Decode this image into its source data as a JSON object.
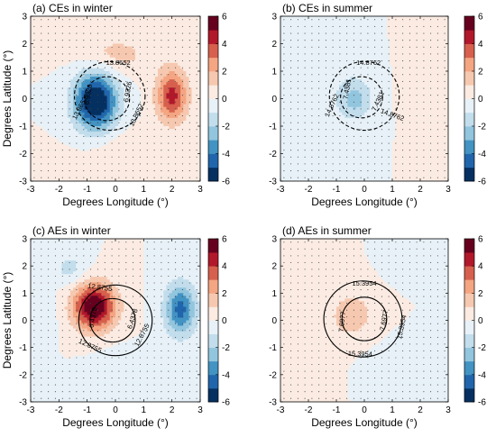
{
  "chart_data": [
    {
      "type": "heatmap",
      "title": "(a) CEs in winter",
      "xlabel": "Degrees Longitude (°)",
      "ylabel": "Degrees Latitude (°)",
      "xlim": [
        -3,
        3
      ],
      "ylim": [
        -3,
        3
      ],
      "xticks": [
        "-3",
        "-2",
        "-1",
        "0",
        "1",
        "2",
        "3"
      ],
      "yticks": [
        "-3",
        "-2",
        "-1",
        "0",
        "1",
        "2",
        "3"
      ],
      "colorbar": {
        "min": -6,
        "max": 6,
        "ticks": [
          "6",
          "4",
          "2",
          "0",
          "-2",
          "-4",
          "-6"
        ]
      },
      "field": [
        {
          "x": -0.7,
          "y": -0.1,
          "amp": -6.6,
          "sx": 0.75,
          "sy": 1.05
        },
        {
          "x": 2.0,
          "y": 0.1,
          "amp": 4.4,
          "sx": 0.55,
          "sy": 0.95
        },
        {
          "x": 0.0,
          "y": 1.6,
          "amp": 1.4,
          "sx": 1.3,
          "sy": 0.7
        },
        {
          "x": 0.2,
          "y": -1.8,
          "amp": 0.7,
          "sx": 1.4,
          "sy": 0.7
        }
      ],
      "contours": {
        "style": "dashed",
        "rings": [
          {
            "cx": -0.2,
            "cy": 0.1,
            "r": 1.25
          },
          {
            "cx": -0.3,
            "cy": 0.0,
            "r": 0.8
          }
        ],
        "labels": [
          {
            "text": "13.8652",
            "x": 0.1,
            "y": 1.3,
            "angle": 0
          },
          {
            "text": "13.8652",
            "x": -1.25,
            "y": -0.35,
            "angle": -62
          },
          {
            "text": "13.8652",
            "x": 0.75,
            "y": -0.6,
            "angle": -65
          },
          {
            "text": "6.9326",
            "x": -0.95,
            "y": 0.15,
            "angle": -80
          },
          {
            "text": "6.9326",
            "x": 0.45,
            "y": 0.25,
            "angle": -80
          }
        ]
      }
    },
    {
      "type": "heatmap",
      "title": "(b) CEs in summer",
      "xlabel": "Degrees Longitude (°)",
      "ylabel": "",
      "xlim": [
        -3,
        3
      ],
      "ylim": [
        -3,
        3
      ],
      "xticks": [
        "-3",
        "-2",
        "-1",
        "0",
        "1",
        "2",
        "3"
      ],
      "yticks": [
        "-3",
        "-2",
        "-1",
        "0",
        "1",
        "2",
        "3"
      ],
      "colorbar": {
        "min": -6,
        "max": 6,
        "ticks": [
          "6",
          "4",
          "2",
          "0",
          "-2",
          "-4",
          "-6"
        ]
      },
      "field": [
        {
          "x": -0.35,
          "y": -0.05,
          "amp": -1.6,
          "sx": 0.45,
          "sy": 0.5
        },
        {
          "x": -0.4,
          "y": 0.2,
          "amp": -1.0,
          "sx": 1.3,
          "sy": 1.8
        },
        {
          "x": -1.3,
          "y": 2.4,
          "amp": -0.6,
          "sx": 0.9,
          "sy": 0.7
        },
        {
          "x": 2.0,
          "y": 0.5,
          "amp": 0.6,
          "sx": 1.2,
          "sy": 2.0
        }
      ],
      "contours": {
        "style": "dashed",
        "rings": [
          {
            "cx": 0.0,
            "cy": 0.1,
            "r": 1.25
          },
          {
            "cx": -0.1,
            "cy": 0.05,
            "r": 0.75
          }
        ],
        "labels": [
          {
            "text": "14.8762",
            "x": 0.15,
            "y": 1.3,
            "angle": 0
          },
          {
            "text": "14.8762",
            "x": -1.15,
            "y": -0.25,
            "angle": -65
          },
          {
            "text": "14.8762",
            "x": 1.0,
            "y": -0.6,
            "angle": 20
          },
          {
            "text": "7.4381",
            "x": -0.6,
            "y": 0.35,
            "angle": -80
          },
          {
            "text": "7.4381",
            "x": 0.5,
            "y": -0.1,
            "angle": -65
          }
        ]
      }
    },
    {
      "type": "heatmap",
      "title": "(c) AEs in winter",
      "xlabel": "Degrees Longitude (°)",
      "ylabel": "Degrees Latitude (°)",
      "xlim": [
        -3,
        3
      ],
      "ylim": [
        -3,
        3
      ],
      "xticks": [
        "-3",
        "-2",
        "-1",
        "0",
        "1",
        "2",
        "3"
      ],
      "yticks": [
        "-3",
        "-2",
        "-1",
        "0",
        "1",
        "2",
        "3"
      ],
      "colorbar": {
        "min": -6,
        "max": 6,
        "ticks": [
          "6",
          "4",
          "2",
          "0",
          "-2",
          "-4",
          "-6"
        ]
      },
      "field": [
        {
          "x": -0.75,
          "y": 0.5,
          "amp": 6.2,
          "sx": 0.75,
          "sy": 0.85
        },
        {
          "x": 2.3,
          "y": 0.4,
          "amp": -4.4,
          "sx": 0.55,
          "sy": 0.95
        },
        {
          "x": -1.6,
          "y": 1.9,
          "amp": -1.4,
          "sx": 0.6,
          "sy": 0.6
        },
        {
          "x": 0.4,
          "y": -1.7,
          "amp": -1.0,
          "sx": 1.0,
          "sy": 0.6
        },
        {
          "x": -2.6,
          "y": 0.2,
          "amp": -0.8,
          "sx": 0.5,
          "sy": 0.8
        }
      ],
      "contours": {
        "style": "solid",
        "rings": [
          {
            "cx": 0.0,
            "cy": 0.0,
            "r": 1.3
          },
          {
            "cx": -0.1,
            "cy": 0.0,
            "r": 0.8
          }
        ],
        "labels": [
          {
            "text": "12.8755",
            "x": -0.55,
            "y": 1.2,
            "angle": 8
          },
          {
            "text": "12.8755",
            "x": -0.9,
            "y": -0.95,
            "angle": 25
          },
          {
            "text": "12.8755",
            "x": 0.95,
            "y": -0.55,
            "angle": -62
          },
          {
            "text": "6.4378",
            "x": -0.78,
            "y": 0.1,
            "angle": -80
          },
          {
            "text": "6.4378",
            "x": 0.62,
            "y": 0.05,
            "angle": -72
          }
        ]
      }
    },
    {
      "type": "heatmap",
      "title": "(d) AEs in summer",
      "xlabel": "Degrees Longitude (°)",
      "ylabel": "",
      "xlim": [
        -3,
        3
      ],
      "ylim": [
        -3,
        3
      ],
      "xticks": [
        "-3",
        "-2",
        "-1",
        "0",
        "1",
        "2",
        "3"
      ],
      "yticks": [
        "-3",
        "-2",
        "-1",
        "0",
        "1",
        "2",
        "3"
      ],
      "colorbar": {
        "min": -6,
        "max": 6,
        "ticks": [
          "6",
          "4",
          "2",
          "0",
          "-2",
          "-4",
          "-6"
        ]
      },
      "field": [
        {
          "x": -0.45,
          "y": 0.2,
          "amp": 1.5,
          "sx": 0.9,
          "sy": 1.0
        },
        {
          "x": 2.3,
          "y": 0.15,
          "amp": -1.0,
          "sx": 0.18,
          "sy": 0.25
        },
        {
          "x": 1.8,
          "y": 2.0,
          "amp": -0.55,
          "sx": 0.9,
          "sy": 0.6
        },
        {
          "x": 1.2,
          "y": -1.6,
          "amp": -0.5,
          "sx": 1.3,
          "sy": 0.9
        },
        {
          "x": -2.0,
          "y": -1.3,
          "amp": 0.5,
          "sx": 1.0,
          "sy": 1.2
        }
      ],
      "contours": {
        "style": "solid",
        "rings": [
          {
            "cx": -0.05,
            "cy": 0.05,
            "r": 1.4
          },
          {
            "cx": 0.0,
            "cy": 0.05,
            "r": 0.8
          }
        ],
        "labels": [
          {
            "text": "15.3954",
            "x": 0.0,
            "y": 1.35,
            "angle": 0
          },
          {
            "text": "15.3954",
            "x": -0.15,
            "y": -1.25,
            "angle": 2
          },
          {
            "text": "15.3954",
            "x": 1.35,
            "y": -0.25,
            "angle": -78
          },
          {
            "text": "7.6977",
            "x": -0.78,
            "y": -0.05,
            "angle": -84
          },
          {
            "text": "7.6977",
            "x": 0.72,
            "y": 0.0,
            "angle": -80
          }
        ]
      }
    }
  ]
}
